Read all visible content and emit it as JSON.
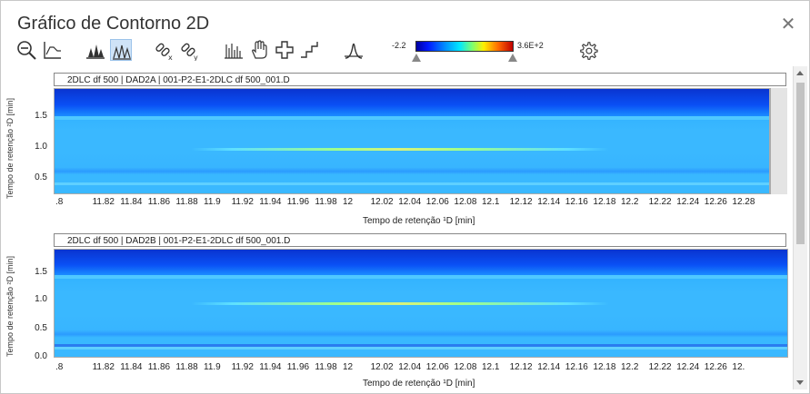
{
  "window": {
    "title": "Gráfico de Contorno 2D"
  },
  "toolbar": {
    "icons": [
      "zoom-out-icon",
      "axis-scale-icon",
      "peaks-3d-icon",
      "peaks-contour-icon",
      "link-x-icon",
      "link-y-icon",
      "spectrum-bars-icon",
      "pan-hand-icon",
      "crosshair-icon",
      "step-icon",
      "peak-shape-icon",
      "settings-gear-icon"
    ],
    "active": "peaks-contour-icon"
  },
  "colorbar": {
    "min": "-2.2",
    "max": "3.6E+2",
    "colors": [
      "#0000a0",
      "#0018ff",
      "#0090ff",
      "#00e8ff",
      "#7dff70",
      "#ffee00",
      "#ff6a00",
      "#c00000"
    ]
  },
  "panels": [
    {
      "header": "2DLC df 500 | DAD2A | 001-P2-E1-2DLC df 500_001.D",
      "y_axis_label": "Tempo de retenção ²D [min]",
      "y_ticks": [
        "1.5",
        "1.0",
        "0.5"
      ],
      "x_axis_label": "Tempo de retenção ¹D [min]",
      "x_ticks": [
        ".8",
        "11.82",
        "11.84",
        "11.86",
        "11.88",
        "11.9",
        "11.92",
        "11.94",
        "11.96",
        "11.98",
        "12",
        "12.02",
        "12.04",
        "12.06",
        "12.08",
        "12.1",
        "12.12",
        "12.14",
        "12.16",
        "12.18",
        "12.2",
        "12.22",
        "12.24",
        "12.26",
        "12.28"
      ]
    },
    {
      "header": "2DLC df 500 | DAD2B | 001-P2-E1-2DLC df 500_001.D",
      "y_axis_label": "Tempo de retenção ²D [min]",
      "y_ticks": [
        "1.5",
        "1.0",
        "0.5",
        "0.0"
      ],
      "x_axis_label": "Tempo de retenção ¹D [min]",
      "x_ticks": [
        ".8",
        "11.82",
        "11.84",
        "11.86",
        "11.88",
        "11.9",
        "11.92",
        "11.94",
        "11.96",
        "11.98",
        "12",
        "12.02",
        "12.04",
        "12.06",
        "12.08",
        "12.1",
        "12.12",
        "12.14",
        "12.16",
        "12.18",
        "12.2",
        "12.22",
        "12.24",
        "12.26",
        "12."
      ]
    }
  ]
}
